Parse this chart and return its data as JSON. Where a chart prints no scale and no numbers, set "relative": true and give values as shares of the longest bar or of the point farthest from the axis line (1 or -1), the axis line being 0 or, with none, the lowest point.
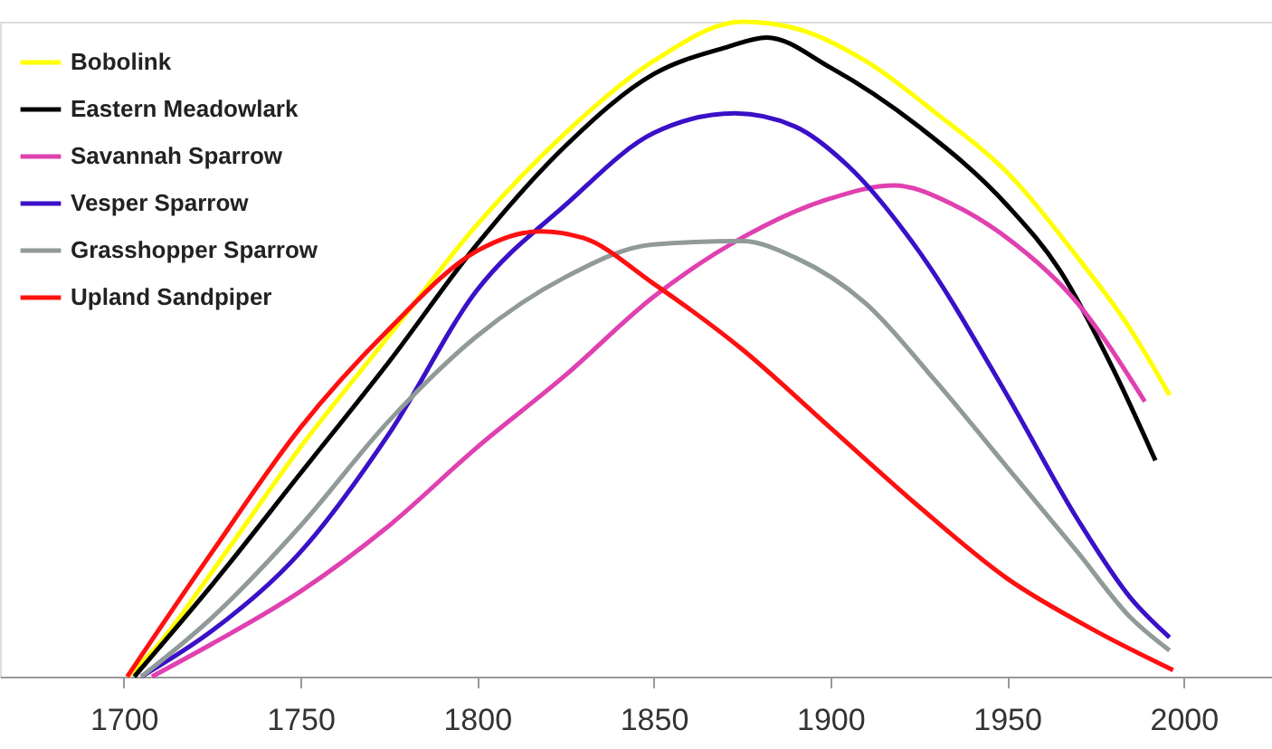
{
  "chart_data": {
    "type": "line",
    "relative": true,
    "xlim": [
      1665,
      2025
    ],
    "xticks": [
      1700,
      1750,
      1800,
      1850,
      1900,
      1950,
      2000
    ],
    "grid": false,
    "legend": "top left",
    "marker": "none",
    "line_style": "solid",
    "tick_labels": "x",
    "series": [
      {
        "name": "Bobolink",
        "color": "#ffff00",
        "x": [
          1701,
          1710,
          1725,
          1750,
          1775,
          1800,
          1825,
          1850,
          1875,
          1890,
          1910,
          1930,
          1950,
          1970,
          1985,
          1996
        ],
        "values": [
          0,
          0.05,
          0.16,
          0.35,
          0.52,
          0.69,
          0.83,
          0.94,
          1.0,
          0.99,
          0.94,
          0.86,
          0.77,
          0.64,
          0.53,
          0.43
        ]
      },
      {
        "name": "Eastern Meadowlark",
        "color": "#000000",
        "x": [
          1703,
          1725,
          1750,
          1775,
          1800,
          1825,
          1850,
          1870,
          1882,
          1900,
          1925,
          1950,
          1965,
          1980,
          1992
        ],
        "values": [
          0,
          0.14,
          0.31,
          0.48,
          0.66,
          0.81,
          0.92,
          0.96,
          0.976,
          0.93,
          0.84,
          0.72,
          0.62,
          0.47,
          0.33
        ]
      },
      {
        "name": "Savannah Sparrow",
        "color": "#e040b0",
        "x": [
          1708,
          1725,
          1750,
          1775,
          1800,
          1825,
          1850,
          1875,
          1900,
          1918,
          1935,
          1950,
          1970,
          1989
        ],
        "values": [
          0,
          0.05,
          0.13,
          0.23,
          0.35,
          0.46,
          0.58,
          0.67,
          0.73,
          0.75,
          0.72,
          0.67,
          0.57,
          0.42
        ]
      },
      {
        "name": "Vesper Sparrow",
        "color": "#3a10c8",
        "x": [
          1705,
          1725,
          1750,
          1775,
          1800,
          1825,
          1850,
          1873,
          1890,
          1905,
          1925,
          1950,
          1970,
          1985,
          1996
        ],
        "values": [
          0,
          0.07,
          0.19,
          0.37,
          0.59,
          0.72,
          0.83,
          0.86,
          0.84,
          0.78,
          0.65,
          0.43,
          0.24,
          0.12,
          0.06
        ]
      },
      {
        "name": "Grasshopper Sparrow",
        "color": "#909a98",
        "x": [
          1705,
          1725,
          1750,
          1775,
          1800,
          1825,
          1850,
          1875,
          1890,
          1910,
          1930,
          1950,
          1970,
          1985,
          1996
        ],
        "values": [
          0,
          0.09,
          0.23,
          0.39,
          0.52,
          0.61,
          0.66,
          0.665,
          0.64,
          0.57,
          0.45,
          0.32,
          0.19,
          0.09,
          0.04
        ]
      },
      {
        "name": "Upland Sandpiper",
        "color": "#ff1010",
        "x": [
          1701,
          1725,
          1750,
          1775,
          1800,
          1818,
          1830,
          1850,
          1875,
          1900,
          1925,
          1950,
          1975,
          1997
        ],
        "values": [
          0,
          0.19,
          0.38,
          0.53,
          0.65,
          0.68,
          0.67,
          0.6,
          0.5,
          0.38,
          0.26,
          0.15,
          0.07,
          0.01
        ]
      }
    ]
  }
}
